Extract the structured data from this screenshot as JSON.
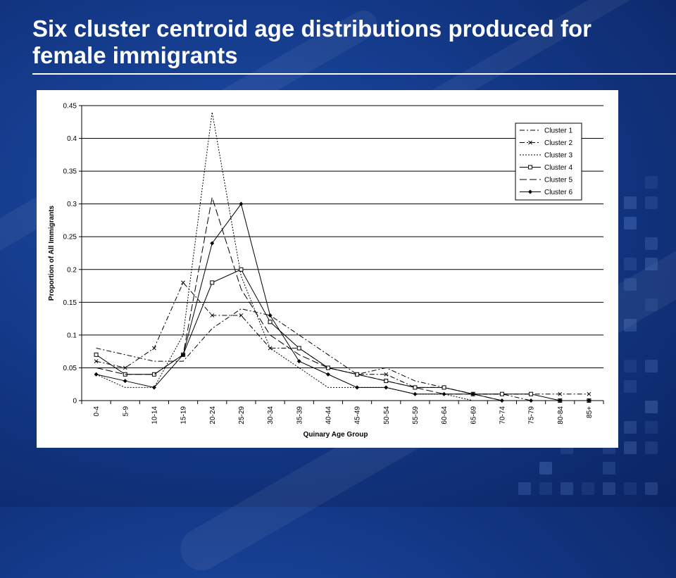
{
  "slide": {
    "title": "Six cluster centroid age distributions produced for female immigrants"
  },
  "chart_data": {
    "type": "line",
    "title": "",
    "xlabel": "Quinary Age Group",
    "ylabel": "Proportion of All Immigrants",
    "ylim": [
      0,
      0.45
    ],
    "yticks": [
      0,
      0.05,
      0.1,
      0.15,
      0.2,
      0.25,
      0.3,
      0.35,
      0.4,
      0.45
    ],
    "ytick_labels": [
      "0",
      "0.05",
      "0.1",
      "0.15",
      "0.2",
      "0.25",
      "0.3",
      "0.35",
      "0.4",
      "0.45"
    ],
    "grid": "horizontal",
    "legend_position": "top-right",
    "categories": [
      "0-4",
      "5-9",
      "10-14",
      "15-19",
      "20-24",
      "25-29",
      "30-34",
      "35-39",
      "40-44",
      "45-49",
      "50-54",
      "55-59",
      "60-64",
      "65-69",
      "70-74",
      "75-79",
      "80-84",
      "85+"
    ],
    "series": [
      {
        "name": "Cluster 1",
        "style": "dashdot",
        "marker": "none",
        "values": [
          0.08,
          0.07,
          0.06,
          0.06,
          0.11,
          0.14,
          0.13,
          0.1,
          0.07,
          0.04,
          0.05,
          0.03,
          0.02,
          0.01,
          0.01,
          0.0,
          0.0,
          0.0
        ]
      },
      {
        "name": "Cluster 2",
        "style": "dashdot",
        "marker": "x",
        "values": [
          0.06,
          0.05,
          0.08,
          0.18,
          0.13,
          0.13,
          0.08,
          0.08,
          0.05,
          0.04,
          0.04,
          0.02,
          0.02,
          0.01,
          0.01,
          0.01,
          0.01,
          0.01
        ]
      },
      {
        "name": "Cluster 3",
        "style": "dotted",
        "marker": "none",
        "values": [
          0.04,
          0.02,
          0.02,
          0.1,
          0.44,
          0.19,
          0.08,
          0.05,
          0.02,
          0.02,
          0.02,
          0.01,
          0.01,
          0.0,
          0.0,
          0.0,
          0.0,
          0.0
        ]
      },
      {
        "name": "Cluster 4",
        "style": "solid",
        "marker": "square",
        "values": [
          0.07,
          0.04,
          0.04,
          0.07,
          0.18,
          0.2,
          0.12,
          0.08,
          0.05,
          0.04,
          0.03,
          0.02,
          0.02,
          0.01,
          0.01,
          0.01,
          0.0,
          0.0
        ]
      },
      {
        "name": "Cluster 5",
        "style": "longdash",
        "marker": "none",
        "values": [
          0.05,
          0.04,
          0.04,
          0.07,
          0.31,
          0.17,
          0.1,
          0.07,
          0.05,
          0.04,
          0.03,
          0.02,
          0.01,
          0.01,
          0.0,
          0.0,
          0.0,
          0.0
        ]
      },
      {
        "name": "Cluster 6",
        "style": "solid",
        "marker": "diamond",
        "values": [
          0.04,
          0.03,
          0.02,
          0.07,
          0.24,
          0.3,
          0.13,
          0.06,
          0.04,
          0.02,
          0.02,
          0.01,
          0.01,
          0.01,
          0.0,
          0.0,
          0.0,
          0.0
        ]
      }
    ]
  }
}
